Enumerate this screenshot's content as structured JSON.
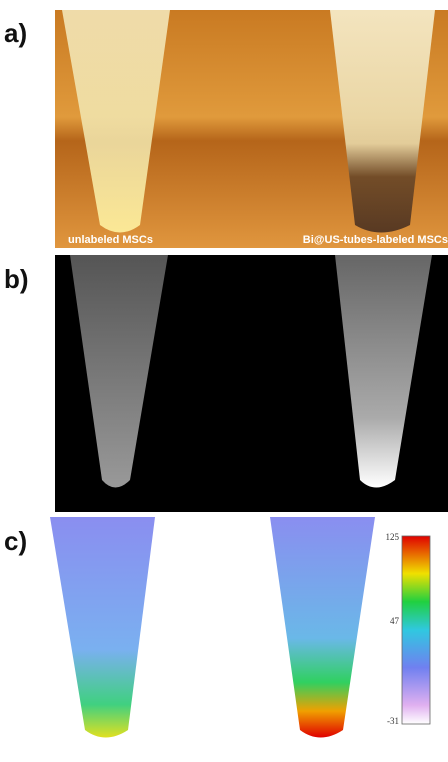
{
  "panels": [
    {
      "label": "a)",
      "captions": [
        "unlabeled MSCs",
        "Bi@US-tubes-labeled MSCs"
      ]
    },
    {
      "label": "b)"
    },
    {
      "label": "c)",
      "colorbar": {
        "ticks": [
          125,
          47,
          -31
        ]
      }
    }
  ]
}
